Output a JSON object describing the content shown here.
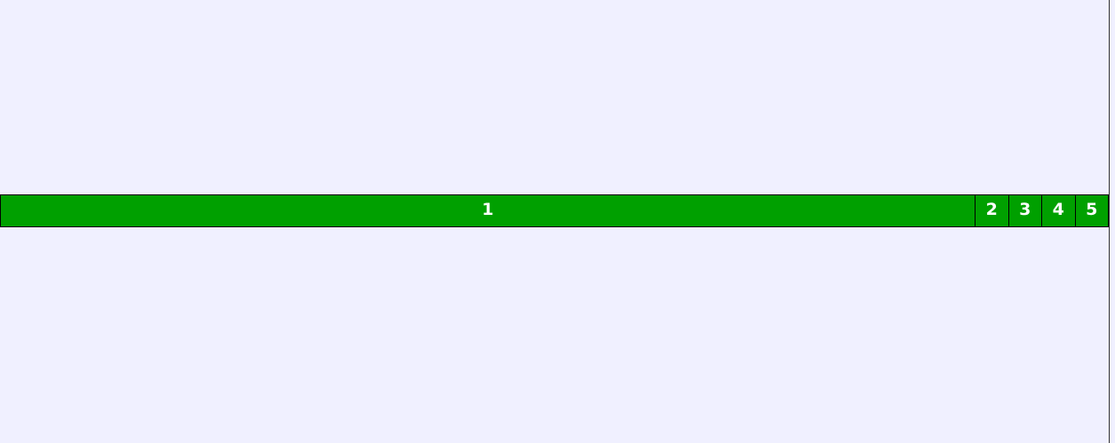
{
  "colors": {
    "background": "#f0f0ff",
    "segment_fill": "#00a000",
    "segment_border": "#000000",
    "segment_text": "#ffffff"
  },
  "bar": {
    "segments": [
      {
        "label": "1"
      },
      {
        "label": "2"
      },
      {
        "label": "3"
      },
      {
        "label": "4"
      },
      {
        "label": "5"
      }
    ]
  }
}
